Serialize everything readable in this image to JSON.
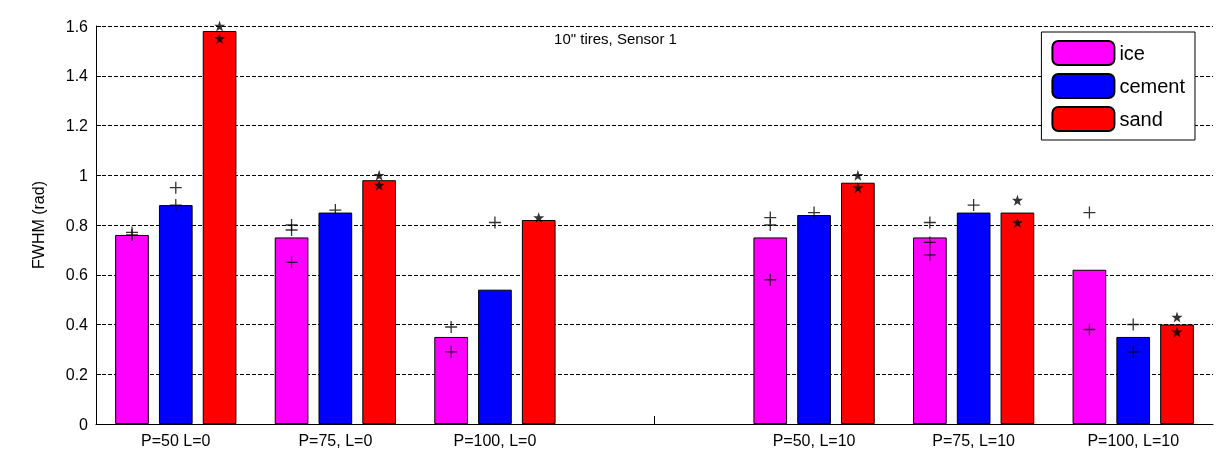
{
  "chart_data": {
    "type": "bar",
    "title": "10\" tires, Sensor 1",
    "ylabel": "FWHM (rad)",
    "categories": [
      "P=50 L=0",
      "P=75, L=0",
      "P=100, L=0",
      null,
      "P=50, L=10",
      "P=75, L=10",
      "P=100, L=10"
    ],
    "ylim": [
      0,
      1.6
    ],
    "yticks": [
      0,
      0.2,
      0.4,
      0.6,
      0.8,
      1,
      1.2,
      1.4,
      1.6
    ],
    "grid": "y",
    "legend": "top right",
    "series": [
      {
        "name": "ice",
        "color": "#ff00ff",
        "values": [
          0.76,
          0.75,
          0.35,
          null,
          0.75,
          0.75,
          0.62
        ]
      },
      {
        "name": "cement",
        "color": "#0000ff",
        "values": [
          0.88,
          0.85,
          0.54,
          null,
          0.84,
          0.85,
          0.35
        ]
      },
      {
        "name": "sand",
        "color": "#ff0000",
        "values": [
          1.58,
          0.98,
          0.82,
          null,
          0.97,
          0.85,
          0.4
        ]
      },
      {
        "type": "scatter",
        "color": "#000000",
        "marker": "cross",
        "x": [
          "P=50 L=0",
          "P=50 L=0",
          "P=75, L=0",
          "P=75, L=0",
          "P=75, L=0",
          "P=100, L=0",
          "P=100, L=0",
          "P=50, L=10",
          "P=50, L=10",
          "P=50, L=10",
          "P=75, L=10",
          "P=75, L=10",
          "P=75, L=10",
          "P=100, L=10",
          "P=100, L=10"
        ],
        "values": [
          0.77,
          0.76,
          0.8,
          0.78,
          0.65,
          0.39,
          0.29,
          0.83,
          0.8,
          0.58,
          0.81,
          0.73,
          0.68,
          0.85,
          0.38
        ]
      },
      {
        "type": "scatter",
        "color": "#000000",
        "marker": "cross",
        "x": [
          "P=50 L=0",
          "P=50 L=0",
          "P=75, L=0",
          "P=100, L=0",
          "P=50, L=10",
          "P=75, L=10",
          "P=100, L=10",
          "P=100, L=10"
        ],
        "values": [
          0.95,
          0.88,
          0.86,
          0.81,
          0.85,
          0.88,
          0.4,
          0.29
        ]
      },
      {
        "type": "scatter",
        "color": "#000000",
        "marker": "star",
        "x": [
          "P=50 L=0",
          "P=50 L=0",
          "P=75, L=0",
          "P=75, L=0",
          "P=100, L=0",
          "P=50, L=10",
          "P=50, L=10",
          "P=75, L=10",
          "P=75, L=10",
          "P=100, L=10",
          "P=100, L=10"
        ],
        "values": [
          1.6,
          1.55,
          1.0,
          0.96,
          0.83,
          1.0,
          0.95,
          0.9,
          0.81,
          0.43,
          0.37
        ]
      }
    ]
  }
}
